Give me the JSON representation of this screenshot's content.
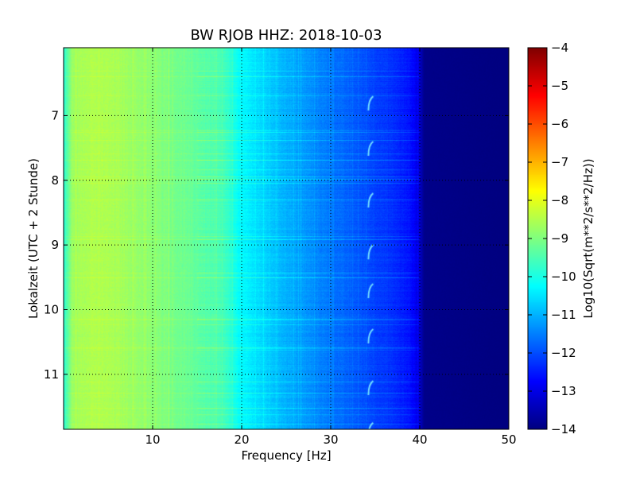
{
  "chart_data": {
    "type": "heatmap",
    "title": "BW RJOB HHZ: 2018-10-03",
    "xlabel": "Frequency [Hz]",
    "ylabel": "Lokalzeit (UTC + 2 Stunde)",
    "xlim": [
      0,
      50
    ],
    "ylim": [
      5.95,
      11.85
    ],
    "y_inverted": true,
    "x_ticks": [
      10,
      20,
      30,
      40,
      50
    ],
    "y_ticks": [
      7,
      8,
      9,
      10,
      11
    ],
    "grid": true,
    "colormap": "jet",
    "colorbar": {
      "label": "Log10(Sqrt(m**2/s**2/Hz))",
      "range": [
        -14,
        -4
      ],
      "ticks": [
        -4,
        -5,
        -6,
        -7,
        -8,
        -9,
        -10,
        -11,
        -12,
        -13,
        -14
      ],
      "tick_labels": [
        "−4",
        "−5",
        "−6",
        "−7",
        "−8",
        "−9",
        "−10",
        "−11",
        "−12",
        "−13",
        "−14"
      ]
    },
    "spectral_profile": {
      "frequency_hz": [
        0,
        1,
        3,
        6,
        10,
        15,
        18,
        20,
        25,
        30,
        34,
        37,
        39,
        39.8,
        40.5,
        50
      ],
      "log10_amplitude": [
        -9.9,
        -8.7,
        -8.5,
        -8.6,
        -8.9,
        -9.3,
        -9.6,
        -10.3,
        -11.0,
        -11.6,
        -12.0,
        -12.3,
        -12.6,
        -13.0,
        -13.9,
        -14.0
      ]
    },
    "tonal_features": [
      {
        "frequency_hz": 34.5,
        "times": [
          6.75,
          7.45,
          8.25,
          9.05,
          9.65,
          10.35,
          11.15,
          11.8
        ]
      }
    ]
  }
}
